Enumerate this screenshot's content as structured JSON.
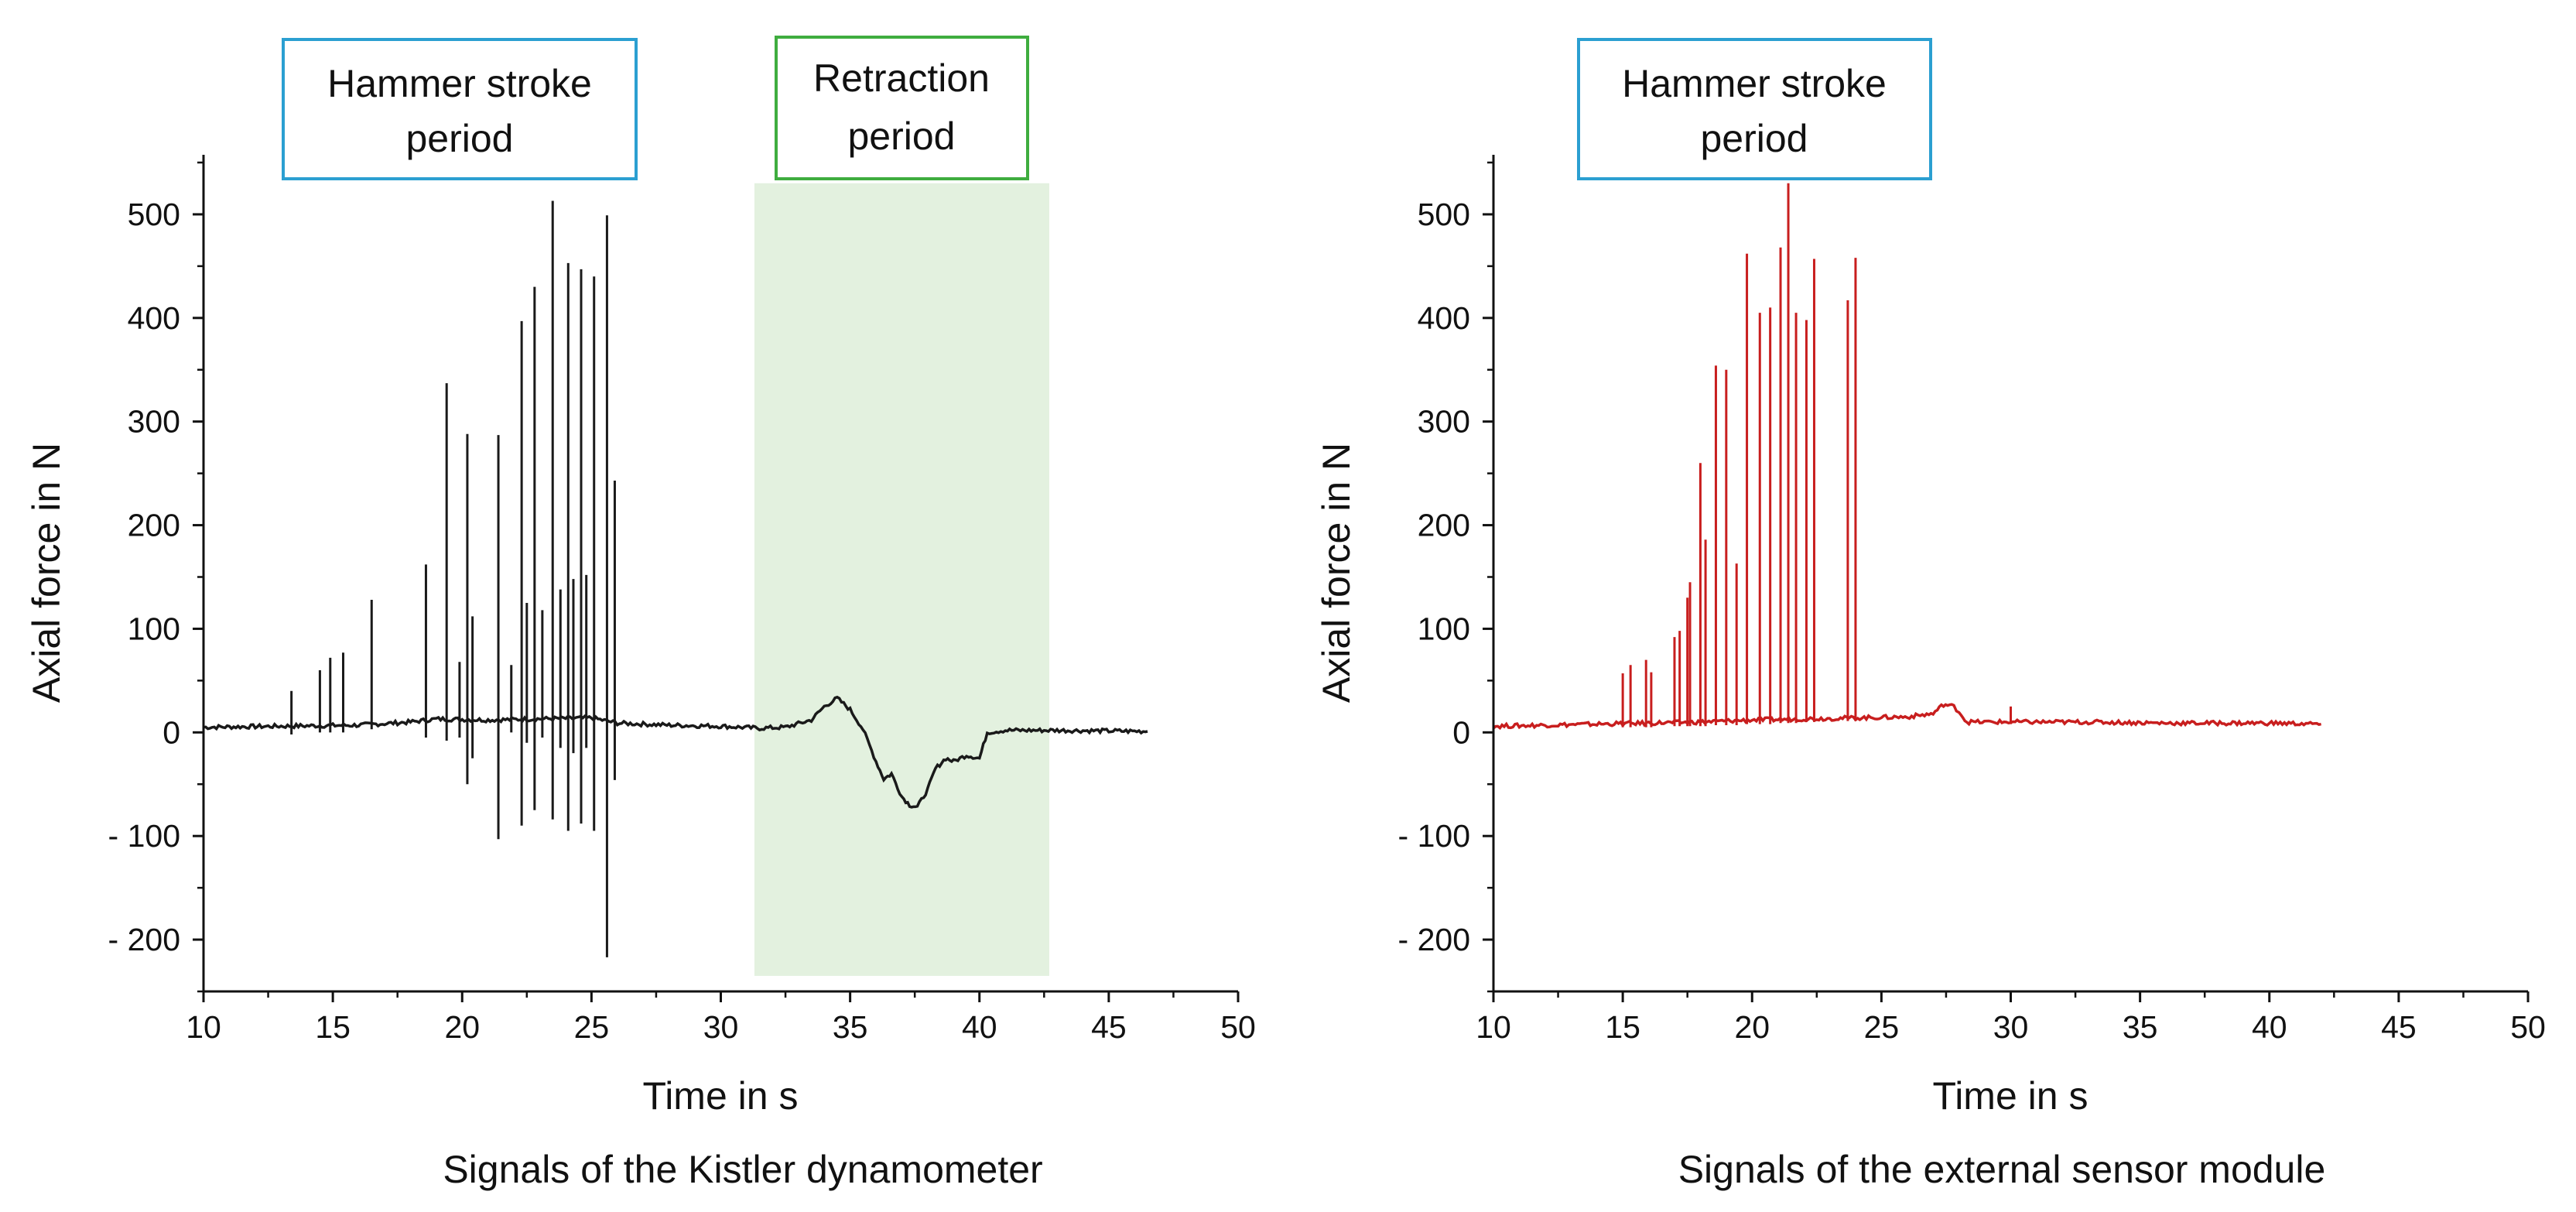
{
  "chart_data": [
    {
      "type": "line",
      "caption": "Signals of the Kistler dynamometer",
      "xlabel": "Time in s",
      "ylabel": "Axial force in N",
      "xlim": [
        10,
        50
      ],
      "ylim": [
        -250,
        550
      ],
      "xticks": [
        10,
        15,
        20,
        25,
        30,
        35,
        40,
        45,
        50
      ],
      "xtick_labels": [
        "10",
        "15",
        "20",
        "25",
        "30",
        "35",
        "40",
        "45",
        "50"
      ],
      "yticks": [
        -200,
        -100,
        0,
        100,
        200,
        300,
        400,
        500
      ],
      "ytick_labels": [
        "- 200",
        "- 100",
        "0",
        "100",
        "200",
        "300",
        "400",
        "500"
      ],
      "line_color": "#1a1a1a",
      "baseline": [
        [
          10,
          5
        ],
        [
          13,
          6
        ],
        [
          16,
          7
        ],
        [
          18,
          10
        ],
        [
          19,
          13
        ],
        [
          21,
          12
        ],
        [
          23,
          13
        ],
        [
          25,
          14
        ],
        [
          26,
          9
        ],
        [
          28,
          7
        ],
        [
          30,
          6
        ],
        [
          31.5,
          4
        ],
        [
          32.5,
          5
        ],
        [
          33.5,
          12
        ],
        [
          34,
          25
        ],
        [
          34.5,
          33
        ],
        [
          35,
          22
        ],
        [
          35.5,
          3
        ],
        [
          36,
          -28
        ],
        [
          36.3,
          -45
        ],
        [
          36.6,
          -40
        ],
        [
          37,
          -62
        ],
        [
          37.3,
          -70
        ],
        [
          37.6,
          -72
        ],
        [
          38,
          -55
        ],
        [
          38.3,
          -35
        ],
        [
          38.7,
          -25
        ],
        [
          39,
          -28
        ],
        [
          39.5,
          -22
        ],
        [
          40,
          -25
        ],
        [
          40.3,
          0
        ],
        [
          41,
          2
        ],
        [
          43,
          2
        ],
        [
          46.5,
          1
        ]
      ],
      "spikes": [
        {
          "x": 13.4,
          "max": 40,
          "min": -2
        },
        {
          "x": 14.5,
          "max": 60,
          "min": 0
        },
        {
          "x": 14.9,
          "max": 72,
          "min": 0
        },
        {
          "x": 15.4,
          "max": 77,
          "min": 0
        },
        {
          "x": 16.5,
          "max": 128,
          "min": 3
        },
        {
          "x": 18.6,
          "max": 162,
          "min": -5
        },
        {
          "x": 19.4,
          "max": 337,
          "min": -8
        },
        {
          "x": 19.9,
          "max": 68,
          "min": -5
        },
        {
          "x": 20.2,
          "max": 288,
          "min": -50
        },
        {
          "x": 20.4,
          "max": 112,
          "min": -25
        },
        {
          "x": 21.4,
          "max": 287,
          "min": -103
        },
        {
          "x": 21.9,
          "max": 65,
          "min": 0
        },
        {
          "x": 22.3,
          "max": 397,
          "min": -90
        },
        {
          "x": 22.5,
          "max": 125,
          "min": -10
        },
        {
          "x": 22.8,
          "max": 430,
          "min": -75
        },
        {
          "x": 23.1,
          "max": 118,
          "min": -5
        },
        {
          "x": 23.5,
          "max": 513,
          "min": -84
        },
        {
          "x": 23.8,
          "max": 138,
          "min": -15
        },
        {
          "x": 24.1,
          "max": 453,
          "min": -95
        },
        {
          "x": 24.3,
          "max": 148,
          "min": -20
        },
        {
          "x": 24.6,
          "max": 447,
          "min": -88
        },
        {
          "x": 24.8,
          "max": 152,
          "min": -15
        },
        {
          "x": 25.1,
          "max": 440,
          "min": -95
        },
        {
          "x": 25.6,
          "max": 499,
          "min": -217
        },
        {
          "x": 25.9,
          "max": 243,
          "min": -46
        }
      ],
      "annotations": [
        {
          "label_lines": [
            "Hammer stroke",
            "period"
          ],
          "color": "#2b9fd1"
        },
        {
          "label_lines": [
            "Retraction",
            "period"
          ],
          "color": "#3fad3f"
        }
      ],
      "shaded_region": {
        "x_range": [
          31.3,
          42.7
        ],
        "y_range": [
          -235,
          530
        ],
        "color": "#e3f1df",
        "label": "Retraction period"
      }
    },
    {
      "type": "line",
      "caption": "Signals of the external sensor module",
      "xlabel": "Time in s",
      "ylabel": "Axial force in N",
      "xlim": [
        10,
        50
      ],
      "ylim": [
        -250,
        550
      ],
      "xticks": [
        10,
        15,
        20,
        25,
        30,
        35,
        40,
        45,
        50
      ],
      "xtick_labels": [
        "10",
        "15",
        "20",
        "25",
        "30",
        "35",
        "40",
        "45",
        "50"
      ],
      "yticks": [
        -200,
        -100,
        0,
        100,
        200,
        300,
        400,
        500
      ],
      "ytick_labels": [
        "- 200",
        "- 100",
        "0",
        "100",
        "200",
        "300",
        "400",
        "500"
      ],
      "line_color": "#c81e1e",
      "baseline": [
        [
          10,
          6
        ],
        [
          12,
          7
        ],
        [
          14,
          8
        ],
        [
          16,
          9
        ],
        [
          18,
          10
        ],
        [
          20,
          12
        ],
        [
          22,
          13
        ],
        [
          24,
          14
        ],
        [
          26,
          15
        ],
        [
          27,
          18
        ],
        [
          27.4,
          27
        ],
        [
          27.8,
          25
        ],
        [
          28,
          20
        ],
        [
          28.3,
          10
        ],
        [
          30,
          10
        ],
        [
          33,
          10
        ],
        [
          36,
          9
        ],
        [
          40,
          9
        ],
        [
          42,
          8
        ]
      ],
      "spikes": [
        {
          "x": 15.0,
          "max": 57,
          "min": 5
        },
        {
          "x": 15.3,
          "max": 65,
          "min": 5
        },
        {
          "x": 15.9,
          "max": 70,
          "min": 5
        },
        {
          "x": 16.1,
          "max": 58,
          "min": 5
        },
        {
          "x": 17.0,
          "max": 92,
          "min": 6
        },
        {
          "x": 17.2,
          "max": 98,
          "min": 6
        },
        {
          "x": 17.5,
          "max": 130,
          "min": 6
        },
        {
          "x": 17.6,
          "max": 145,
          "min": 6
        },
        {
          "x": 18.0,
          "max": 260,
          "min": 6
        },
        {
          "x": 18.2,
          "max": 186,
          "min": 6
        },
        {
          "x": 18.6,
          "max": 354,
          "min": 7
        },
        {
          "x": 19.0,
          "max": 350,
          "min": 7
        },
        {
          "x": 19.4,
          "max": 163,
          "min": 7
        },
        {
          "x": 19.8,
          "max": 462,
          "min": 8
        },
        {
          "x": 20.3,
          "max": 405,
          "min": 8
        },
        {
          "x": 20.7,
          "max": 410,
          "min": 8
        },
        {
          "x": 21.1,
          "max": 468,
          "min": 9
        },
        {
          "x": 21.4,
          "max": 530,
          "min": 9
        },
        {
          "x": 21.7,
          "max": 405,
          "min": 9
        },
        {
          "x": 22.1,
          "max": 398,
          "min": 10
        },
        {
          "x": 22.4,
          "max": 457,
          "min": 10
        },
        {
          "x": 23.7,
          "max": 417,
          "min": 11
        },
        {
          "x": 24.0,
          "max": 458,
          "min": 11
        },
        {
          "x": 30.0,
          "max": 25,
          "min": 8
        }
      ],
      "annotations": [
        {
          "label_lines": [
            "Hammer stroke",
            "period"
          ],
          "color": "#2b9fd1"
        }
      ]
    }
  ]
}
